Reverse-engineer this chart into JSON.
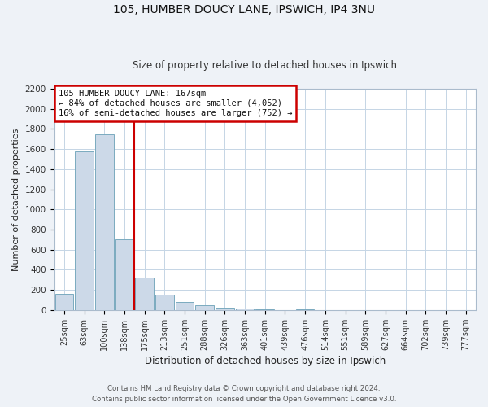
{
  "title1": "105, HUMBER DOUCY LANE, IPSWICH, IP4 3NU",
  "title2": "Size of property relative to detached houses in Ipswich",
  "xlabel": "Distribution of detached houses by size in Ipswich",
  "ylabel": "Number of detached properties",
  "bar_labels": [
    "25sqm",
    "63sqm",
    "100sqm",
    "138sqm",
    "175sqm",
    "213sqm",
    "251sqm",
    "288sqm",
    "326sqm",
    "363sqm",
    "401sqm",
    "439sqm",
    "476sqm",
    "514sqm",
    "551sqm",
    "589sqm",
    "627sqm",
    "664sqm",
    "702sqm",
    "739sqm",
    "777sqm"
  ],
  "bar_values": [
    160,
    1580,
    1750,
    700,
    320,
    155,
    80,
    45,
    25,
    15,
    10,
    0,
    10,
    0,
    0,
    0,
    0,
    0,
    0,
    0,
    0
  ],
  "bar_color": "#ccd9e8",
  "bar_edge_color": "#7aaabf",
  "vline_color": "#cc0000",
  "annotation_line1": "105 HUMBER DOUCY LANE: 167sqm",
  "annotation_line2": "← 84% of detached houses are smaller (4,052)",
  "annotation_line3": "16% of semi-detached houses are larger (752) →",
  "annotation_box_color": "#ffffff",
  "annotation_box_edge": "#cc0000",
  "ylim": [
    0,
    2200
  ],
  "yticks": [
    0,
    200,
    400,
    600,
    800,
    1000,
    1200,
    1400,
    1600,
    1800,
    2000,
    2200
  ],
  "footer1": "Contains HM Land Registry data © Crown copyright and database right 2024.",
  "footer2": "Contains public sector information licensed under the Open Government Licence v3.0.",
  "bg_color": "#eef2f7",
  "plot_bg_color": "#ffffff",
  "grid_color": "#c5d5e5"
}
